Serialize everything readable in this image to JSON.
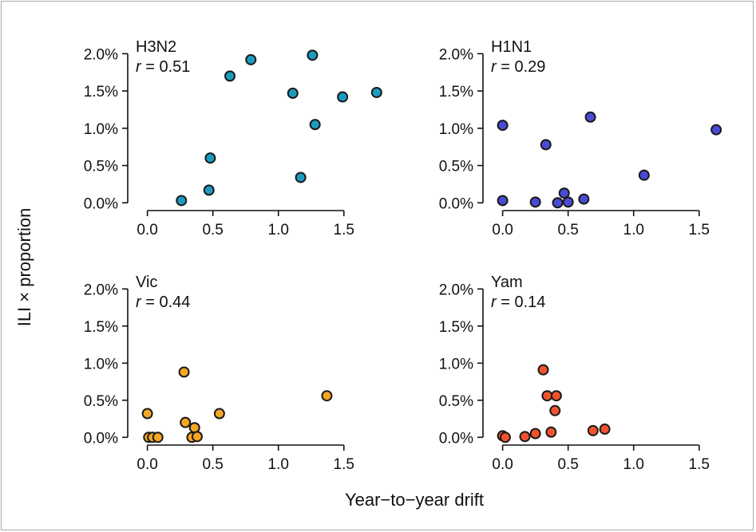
{
  "xlabel": "Year−to−year drift",
  "ylabel": "ILI × proportion",
  "chart_data": [
    {
      "type": "scatter",
      "title": "H3N2",
      "annotation": "= 0.51",
      "color": "#1b9cbf",
      "xlim": [
        -0.15,
        1.8
      ],
      "ylim": [
        -0.0004,
        0.021
      ],
      "xticks": [
        0.0,
        0.5,
        1.0,
        1.5
      ],
      "xtick_labels": [
        "0.0",
        "0.5",
        "1.0",
        "1.5"
      ],
      "yticks": [
        0.0,
        0.005,
        0.01,
        0.015,
        0.02
      ],
      "ytick_labels": [
        "0.0%",
        "0.5%",
        "1.0%",
        "1.5%",
        "2.0%"
      ],
      "points": [
        {
          "x": 0.26,
          "y": 0.0003
        },
        {
          "x": 0.47,
          "y": 0.0017
        },
        {
          "x": 0.48,
          "y": 0.006
        },
        {
          "x": 0.63,
          "y": 0.017
        },
        {
          "x": 0.79,
          "y": 0.0192
        },
        {
          "x": 1.11,
          "y": 0.0147
        },
        {
          "x": 1.17,
          "y": 0.0034
        },
        {
          "x": 1.26,
          "y": 0.0198
        },
        {
          "x": 1.28,
          "y": 0.0105
        },
        {
          "x": 1.49,
          "y": 0.0142
        },
        {
          "x": 1.75,
          "y": 0.0148
        }
      ]
    },
    {
      "type": "scatter",
      "title": "H1N1",
      "annotation": "= 0.29",
      "color": "#4a4ad4",
      "xlim": [
        -0.15,
        1.8
      ],
      "ylim": [
        -0.0004,
        0.021
      ],
      "xticks": [
        0.0,
        0.5,
        1.0,
        1.5
      ],
      "xtick_labels": [
        "0.0",
        "0.5",
        "1.0",
        "1.5"
      ],
      "yticks": [
        0.0,
        0.005,
        0.01,
        0.015,
        0.02
      ],
      "ytick_labels": [
        "0.0%",
        "0.5%",
        "1.0%",
        "1.5%",
        "2.0%"
      ],
      "points": [
        {
          "x": 0.0,
          "y": 0.0003
        },
        {
          "x": 0.0,
          "y": 0.0104
        },
        {
          "x": 0.25,
          "y": 0.0001
        },
        {
          "x": 0.33,
          "y": 0.0078
        },
        {
          "x": 0.42,
          "y": 0.0
        },
        {
          "x": 0.47,
          "y": 0.0013
        },
        {
          "x": 0.5,
          "y": 0.0001
        },
        {
          "x": 0.62,
          "y": 0.0005
        },
        {
          "x": 0.67,
          "y": 0.0115
        },
        {
          "x": 1.08,
          "y": 0.0037
        },
        {
          "x": 1.63,
          "y": 0.0098
        }
      ]
    },
    {
      "type": "scatter",
      "title": "Vic",
      "annotation": "= 0.44",
      "color": "#f5a623",
      "xlim": [
        -0.15,
        1.8
      ],
      "ylim": [
        -0.0004,
        0.021
      ],
      "xticks": [
        0.0,
        0.5,
        1.0,
        1.5
      ],
      "xtick_labels": [
        "0.0",
        "0.5",
        "1.0",
        "1.5"
      ],
      "yticks": [
        0.0,
        0.005,
        0.01,
        0.015,
        0.02
      ],
      "ytick_labels": [
        "0.0%",
        "0.5%",
        "1.0%",
        "1.5%",
        "2.0%"
      ],
      "points": [
        {
          "x": 0.0,
          "y": 0.0032
        },
        {
          "x": 0.01,
          "y": 0.0
        },
        {
          "x": 0.04,
          "y": 0.0
        },
        {
          "x": 0.08,
          "y": 0.0
        },
        {
          "x": 0.28,
          "y": 0.0088
        },
        {
          "x": 0.29,
          "y": 0.002
        },
        {
          "x": 0.34,
          "y": 0.0
        },
        {
          "x": 0.36,
          "y": 0.0013
        },
        {
          "x": 0.38,
          "y": 0.0001
        },
        {
          "x": 0.55,
          "y": 0.0032
        },
        {
          "x": 1.37,
          "y": 0.0056
        }
      ]
    },
    {
      "type": "scatter",
      "title": "Yam",
      "annotation": "= 0.14",
      "color": "#f2532e",
      "xlim": [
        -0.15,
        1.8
      ],
      "ylim": [
        -0.0004,
        0.021
      ],
      "xticks": [
        0.0,
        0.5,
        1.0,
        1.5
      ],
      "xtick_labels": [
        "0.0",
        "0.5",
        "1.0",
        "1.5"
      ],
      "yticks": [
        0.0,
        0.005,
        0.01,
        0.015,
        0.02
      ],
      "ytick_labels": [
        "0.0%",
        "0.5%",
        "1.0%",
        "1.5%",
        "2.0%"
      ],
      "points": [
        {
          "x": 0.0,
          "y": 0.0002
        },
        {
          "x": 0.02,
          "y": 0.0
        },
        {
          "x": 0.17,
          "y": 0.0001
        },
        {
          "x": 0.25,
          "y": 0.0005
        },
        {
          "x": 0.31,
          "y": 0.0091
        },
        {
          "x": 0.34,
          "y": 0.0056
        },
        {
          "x": 0.37,
          "y": 0.0007
        },
        {
          "x": 0.4,
          "y": 0.0036
        },
        {
          "x": 0.41,
          "y": 0.0056
        },
        {
          "x": 0.69,
          "y": 0.0009
        },
        {
          "x": 0.78,
          "y": 0.0011
        }
      ]
    }
  ]
}
